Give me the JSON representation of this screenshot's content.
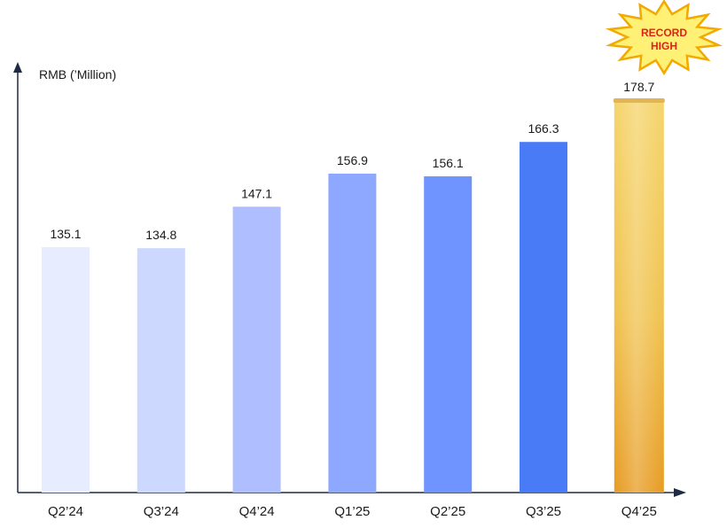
{
  "chart_data": {
    "type": "bar",
    "ylabel": "RMB (’Million)",
    "categories": [
      "Q2’24",
      "Q3’24",
      "Q4’24",
      "Q1’25",
      "Q2’25",
      "Q3’25",
      "Q4’25"
    ],
    "values": [
      135.1,
      134.8,
      147.1,
      156.9,
      156.1,
      166.3,
      178.7
    ],
    "value_labels": [
      "135.1",
      "134.8",
      "147.1",
      "156.9",
      "156.1",
      "166.3",
      "178.7"
    ],
    "bar_colors": [
      "#e8ecff",
      "#cdd8ff",
      "#aebefe",
      "#8ea8ff",
      "#6f93ff",
      "#4a7bf7",
      "#efc24d"
    ],
    "highlight_index": 6,
    "highlight_badge": [
      "RECORD",
      "HIGH"
    ],
    "grid": false,
    "legend": "none"
  },
  "colors": {
    "axis": "#1f2a44",
    "label_text": "#1a1a1a",
    "badge_fill": "#fff176",
    "badge_stroke": "#f2a900",
    "badge_text": "#e0211b",
    "highlight_top": "#f5d46a",
    "highlight_bottom": "#e79b22"
  }
}
